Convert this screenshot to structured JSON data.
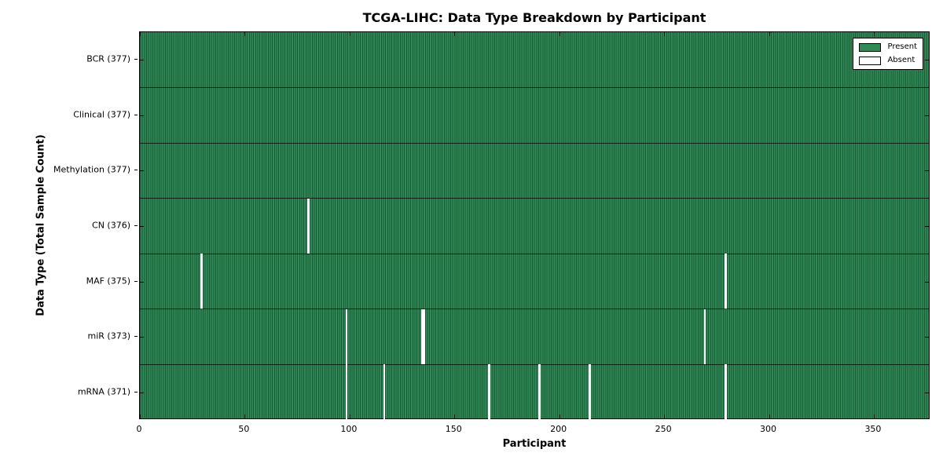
{
  "title": "TCGA-LIHC: Data Type Breakdown by Participant",
  "xlabel": "Participant",
  "ylabel": "Data Type (Total Sample Count)",
  "colors": {
    "present": "#2e8b57",
    "present_edge": "#1d5837",
    "absent": "#ffffff",
    "axis": "#000000",
    "background": "#ffffff"
  },
  "chart_data": {
    "type": "heatmap",
    "title": "TCGA-LIHC: Data Type Breakdown by Participant",
    "xlabel": "Participant",
    "ylabel": "Data Type (Total Sample Count)",
    "x_range": [
      0,
      377
    ],
    "n_participants": 377,
    "x_ticks": [
      0,
      50,
      100,
      150,
      200,
      250,
      300,
      350
    ],
    "grid": false,
    "legend_position": "upper right",
    "rows": [
      {
        "name": "BCR",
        "label": "BCR (377)",
        "total": 377,
        "absent": []
      },
      {
        "name": "Clinical",
        "label": "Clinical (377)",
        "total": 377,
        "absent": []
      },
      {
        "name": "Methylation",
        "label": "Methylation (377)",
        "total": 377,
        "absent": []
      },
      {
        "name": "CN",
        "label": "CN (376)",
        "total": 376,
        "absent": [
          80
        ]
      },
      {
        "name": "MAF",
        "label": "MAF (375)",
        "total": 375,
        "absent": [
          29,
          279
        ]
      },
      {
        "name": "miR",
        "label": "miR (373)",
        "total": 373,
        "absent": [
          98,
          134,
          135,
          269
        ]
      },
      {
        "name": "mRNA",
        "label": "mRNA (371)",
        "total": 371,
        "absent": [
          98,
          116,
          166,
          190,
          214,
          279
        ]
      }
    ],
    "legend_entries": [
      {
        "label": "Present",
        "color": "#2e8b57"
      },
      {
        "label": "Absent",
        "color": "#ffffff"
      }
    ]
  }
}
